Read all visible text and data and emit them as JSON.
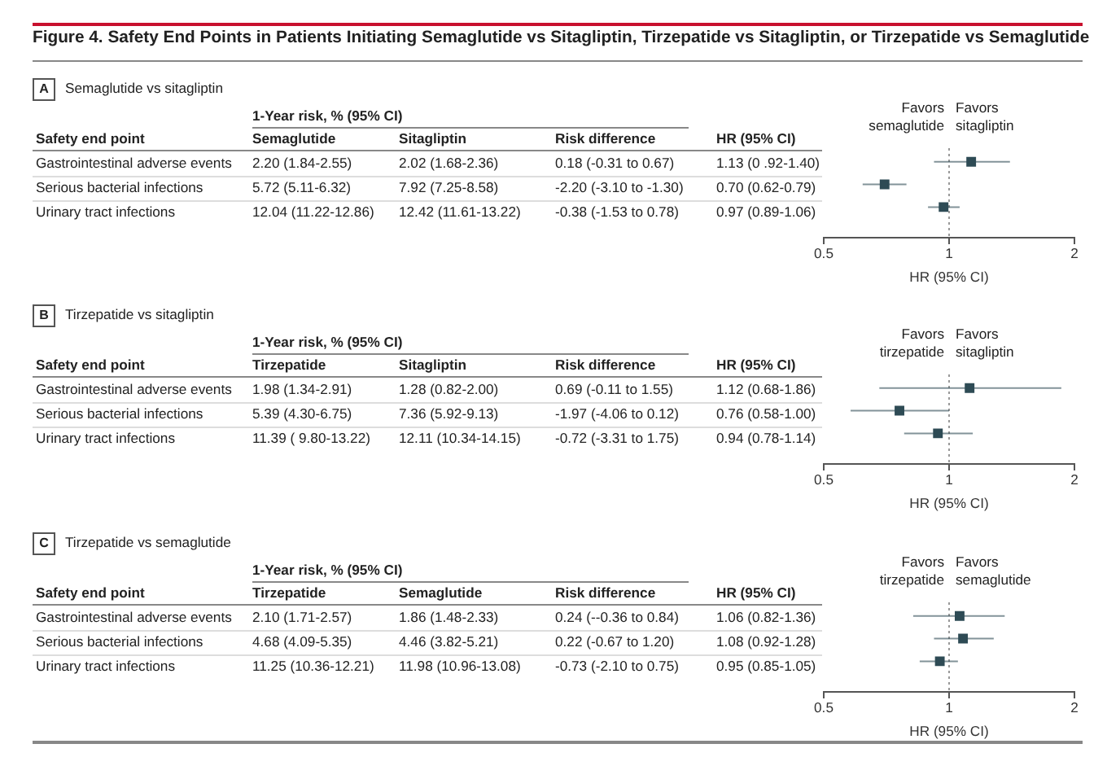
{
  "chart_data": [
    {
      "type": "scatter",
      "title": "Figure 4. Safety End Points in Patients Initiating Semaglutide vs Sitagliptin, Tirzepatide vs Sitagliptin, or Tirzepatide vs Semaglutide",
      "orientation": "horizontal",
      "categories": [
        "Gastrointestinal adverse events",
        "Serious bacterial infections",
        "Urinary tract infections"
      ],
      "values": [
        1.13,
        0.7,
        0.97
      ],
      "errors": [
        [
          0.92,
          1.4
        ],
        [
          0.62,
          0.79
        ],
        [
          0.89,
          1.06
        ]
      ],
      "value_labels": [
        "1.13 (0 .92-1.40)",
        "0.70 (0.62-0.79)",
        "0.97 (0.89-1.06)"
      ],
      "color": "#2e4b55",
      "marker": "square",
      "log": "x",
      "xlim": [
        0.5,
        2
      ],
      "xticks": [
        0.5,
        1,
        2
      ],
      "xlabel": "HR (95% CI)",
      "tick_labels": "x",
      "ref_lines": [
        {
          "axis": "x",
          "value": 1,
          "line_style": "dotted"
        }
      ],
      "annotations": [
        "A",
        "Semaglutide vs sitagliptin",
        "1-Year risk, % (95% CI)",
        "Safety end point",
        "Semaglutide",
        "Sitagliptin",
        "Risk difference",
        "HR (95% CI)",
        "2.20 (1.84-2.55)",
        "2.02 (1.68-2.36)",
        "0.18 (-0.31 to 0.67)",
        "5.72 (5.11-6.32)",
        "7.92 (7.25-8.58)",
        "-2.20 (-3.10 to -1.30)",
        "12.04 (11.22-12.86)",
        "12.42 (11.61-13.22)",
        "-0.38 (-1.53 to 0.78)",
        "Favors semaglutide",
        "Favors sitagliptin"
      ]
    },
    {
      "type": "scatter",
      "orientation": "horizontal",
      "categories": [
        "Gastrointestinal adverse events",
        "Serious bacterial infections",
        "Urinary tract infections"
      ],
      "values": [
        1.12,
        0.76,
        0.94
      ],
      "errors": [
        [
          0.68,
          1.86
        ],
        [
          0.58,
          1.0
        ],
        [
          0.78,
          1.14
        ]
      ],
      "value_labels": [
        "1.12 (0.68-1.86)",
        "0.76 (0.58-1.00)",
        "0.94 (0.78-1.14)"
      ],
      "color": "#2e4b55",
      "marker": "square",
      "log": "x",
      "xlim": [
        0.5,
        2
      ],
      "xticks": [
        0.5,
        1,
        2
      ],
      "xlabel": "HR (95% CI)",
      "tick_labels": "x",
      "ref_lines": [
        {
          "axis": "x",
          "value": 1,
          "line_style": "dotted"
        }
      ],
      "annotations": [
        "B",
        "Tirzepatide vs sitagliptin",
        "1-Year risk, % (95% CI)",
        "Safety end point",
        "Tirzepatide",
        "Sitagliptin",
        "Risk difference",
        "HR (95% CI)",
        "1.98 (1.34-2.91)",
        "1.28 (0.82-2.00)",
        "0.69 (-0.11 to 1.55)",
        "5.39 (4.30-6.75)",
        "7.36 (5.92-9.13)",
        "-1.97 (-4.06 to 0.12)",
        "11.39 ( 9.80-13.22)",
        "12.11 (10.34-14.15)",
        "-0.72 (-3.31 to 1.75)",
        "Favors tirzepatide",
        "Favors sitagliptin"
      ]
    },
    {
      "type": "scatter",
      "orientation": "horizontal",
      "categories": [
        "Gastrointestinal adverse events",
        "Serious bacterial infections",
        "Urinary tract infections"
      ],
      "values": [
        1.06,
        1.08,
        0.95
      ],
      "errors": [
        [
          0.82,
          1.36
        ],
        [
          0.92,
          1.28
        ],
        [
          0.85,
          1.05
        ]
      ],
      "value_labels": [
        "1.06 (0.82-1.36)",
        "1.08 (0.92-1.28)",
        "0.95 (0.85-1.05)"
      ],
      "color": "#2e4b55",
      "marker": "square",
      "log": "x",
      "xlim": [
        0.5,
        2
      ],
      "xticks": [
        0.5,
        1,
        2
      ],
      "xlabel": "HR (95% CI)",
      "tick_labels": "x",
      "ref_lines": [
        {
          "axis": "x",
          "value": 1,
          "line_style": "dotted"
        }
      ],
      "annotations": [
        "C",
        "Tirzepatide vs semaglutide",
        "1-Year risk, % (95% CI)",
        "Safety end point",
        "Tirzepatide",
        "Semaglutide",
        "Risk difference",
        "HR (95% CI)",
        "2.10 (1.71-2.57)",
        "1.86 (1.48-2.33)",
        "0.24 (--0.36 to 0.84)",
        "4.68 (4.09-5.35)",
        "4.46 (3.82-5.21)",
        "0.22 (-0.67 to 1.20)",
        "11.25 (10.36-12.21)",
        "11.98 (10.96-13.08)",
        "-0.73 (-2.10 to 0.75)",
        "Favors tirzepatide",
        "Favors semaglutide"
      ]
    }
  ]
}
